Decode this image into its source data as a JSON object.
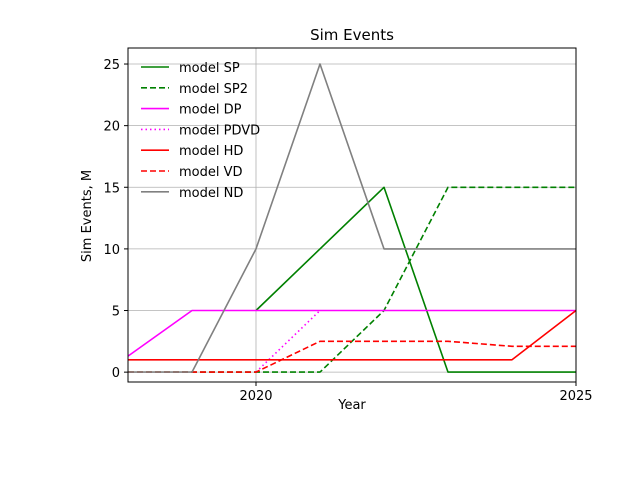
{
  "chart_data": {
    "type": "line",
    "title": "Sim Events",
    "xlabel": "Year",
    "ylabel": "Sim Events, M",
    "xlim": [
      2018,
      2025
    ],
    "ylim": [
      -0.8,
      26.3
    ],
    "x_ticks": [
      2020,
      2025
    ],
    "y_ticks": [
      0,
      5,
      10,
      15,
      20,
      25
    ],
    "grid": true,
    "legend_position": "upper-left",
    "series": [
      {
        "name": "model SP",
        "color": "#008000",
        "style": "solid",
        "points": [
          [
            2020,
            5
          ],
          [
            2022,
            15
          ],
          [
            2023,
            0
          ],
          [
            2025,
            0
          ]
        ]
      },
      {
        "name": "model SP2",
        "color": "#008000",
        "style": "dashed",
        "points": [
          [
            2018,
            0
          ],
          [
            2021,
            0
          ],
          [
            2022,
            5
          ],
          [
            2023,
            15
          ],
          [
            2025,
            15
          ]
        ]
      },
      {
        "name": "model DP",
        "color": "#ff00ff",
        "style": "solid",
        "points": [
          [
            2018,
            1.3
          ],
          [
            2019,
            5
          ],
          [
            2025,
            5
          ]
        ]
      },
      {
        "name": "model PDVD",
        "color": "#ff00ff",
        "style": "dotted",
        "points": [
          [
            2020,
            0
          ],
          [
            2021,
            5
          ]
        ]
      },
      {
        "name": "model HD",
        "color": "#ff0000",
        "style": "solid",
        "points": [
          [
            2018,
            1
          ],
          [
            2024,
            1
          ],
          [
            2025,
            5
          ]
        ]
      },
      {
        "name": "model VD",
        "color": "#ff0000",
        "style": "dashed",
        "points": [
          [
            2018,
            0
          ],
          [
            2020,
            0
          ],
          [
            2021,
            2.5
          ],
          [
            2023,
            2.5
          ],
          [
            2024,
            2.1
          ],
          [
            2025,
            2.1
          ]
        ]
      },
      {
        "name": "model ND",
        "color": "#808080",
        "style": "solid",
        "points": [
          [
            2018,
            0
          ],
          [
            2019,
            0
          ],
          [
            2020,
            10
          ],
          [
            2021,
            25
          ],
          [
            2022,
            10
          ],
          [
            2025,
            10
          ]
        ]
      }
    ]
  }
}
